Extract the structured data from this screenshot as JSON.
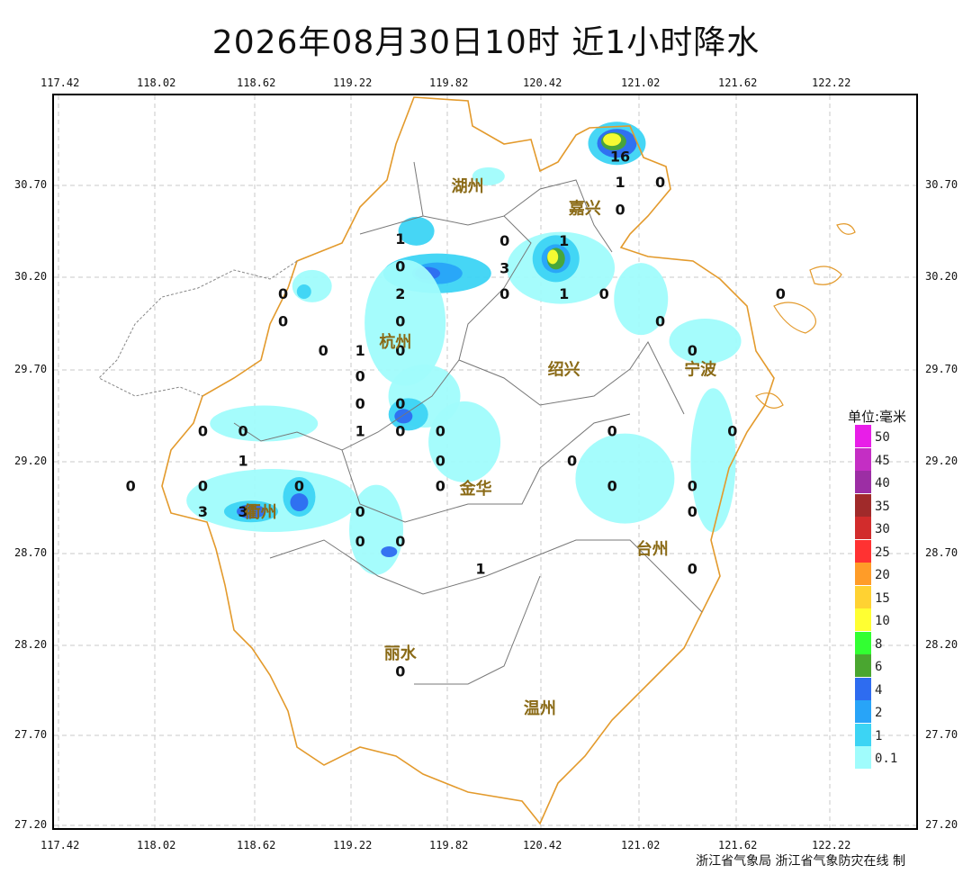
{
  "title": "2026年08月30日10时  近1小时降水",
  "footer": "浙江省气象局 浙江省气象防灾在线 制",
  "x_ticks": [
    "117.42",
    "118.02",
    "118.62",
    "119.22",
    "119.82",
    "120.42",
    "121.02",
    "121.62",
    "122.22"
  ],
  "y_ticks": [
    "30.70",
    "30.20",
    "29.70",
    "29.20",
    "28.70",
    "28.20",
    "27.70",
    "27.20"
  ],
  "legend": {
    "title": "单位:毫米",
    "items": [
      {
        "label": "50",
        "color": "#e81ee8"
      },
      {
        "label": "45",
        "color": "#c42ec4"
      },
      {
        "label": "40",
        "color": "#9c2ea4"
      },
      {
        "label": "35",
        "color": "#a02a2a"
      },
      {
        "label": "30",
        "color": "#d22c2c"
      },
      {
        "label": "25",
        "color": "#ff3232"
      },
      {
        "label": "20",
        "color": "#ff9c28"
      },
      {
        "label": "15",
        "color": "#ffd232"
      },
      {
        "label": "10",
        "color": "#ffff32"
      },
      {
        "label": "8",
        "color": "#32ff32"
      },
      {
        "label": "6",
        "color": "#4aa630"
      },
      {
        "label": "4",
        "color": "#2e6cf0"
      },
      {
        "label": "2",
        "color": "#28a4f8"
      },
      {
        "label": "1",
        "color": "#3cd4f4"
      },
      {
        "label": "0.1",
        "color": "#a0fcfc"
      }
    ]
  },
  "cities": [
    {
      "name": "湖州",
      "lon": 119.97,
      "lat": 30.7
    },
    {
      "name": "嘉兴",
      "lon": 120.7,
      "lat": 30.58
    },
    {
      "name": "杭州",
      "lon": 119.52,
      "lat": 29.85
    },
    {
      "name": "绍兴",
      "lon": 120.57,
      "lat": 29.7
    },
    {
      "name": "宁波",
      "lon": 121.42,
      "lat": 29.7
    },
    {
      "name": "金华",
      "lon": 120.02,
      "lat": 29.05
    },
    {
      "name": "衢州",
      "lon": 118.68,
      "lat": 28.92
    },
    {
      "name": "台州",
      "lon": 121.12,
      "lat": 28.72
    },
    {
      "name": "丽水",
      "lon": 119.55,
      "lat": 28.15
    },
    {
      "name": "温州",
      "lon": 120.42,
      "lat": 27.85
    }
  ],
  "stations": [
    {
      "v": "16",
      "lon": 120.92,
      "lat": 30.86
    },
    {
      "v": "1",
      "lon": 120.92,
      "lat": 30.72
    },
    {
      "v": "0",
      "lon": 121.17,
      "lat": 30.72
    },
    {
      "v": "0",
      "lon": 120.92,
      "lat": 30.57
    },
    {
      "v": "0",
      "lon": 120.2,
      "lat": 30.4
    },
    {
      "v": "1",
      "lon": 120.57,
      "lat": 30.4
    },
    {
      "v": "3",
      "lon": 120.2,
      "lat": 30.25
    },
    {
      "v": "0",
      "lon": 120.2,
      "lat": 30.11
    },
    {
      "v": "1",
      "lon": 120.57,
      "lat": 30.11
    },
    {
      "v": "0",
      "lon": 120.82,
      "lat": 30.11
    },
    {
      "v": "0",
      "lon": 121.17,
      "lat": 29.96
    },
    {
      "v": "0",
      "lon": 121.92,
      "lat": 30.11
    },
    {
      "v": "1",
      "lon": 119.55,
      "lat": 30.41
    },
    {
      "v": "0",
      "lon": 119.55,
      "lat": 30.26
    },
    {
      "v": "2",
      "lon": 119.55,
      "lat": 30.11
    },
    {
      "v": "0",
      "lon": 119.55,
      "lat": 29.96
    },
    {
      "v": "0",
      "lon": 119.55,
      "lat": 29.8
    },
    {
      "v": "0",
      "lon": 118.82,
      "lat": 30.11
    },
    {
      "v": "0",
      "lon": 118.82,
      "lat": 29.96
    },
    {
      "v": "0",
      "lon": 119.07,
      "lat": 29.8
    },
    {
      "v": "1",
      "lon": 119.3,
      "lat": 29.8
    },
    {
      "v": "0",
      "lon": 119.3,
      "lat": 29.66
    },
    {
      "v": "0",
      "lon": 119.3,
      "lat": 29.51
    },
    {
      "v": "1",
      "lon": 119.3,
      "lat": 29.36
    },
    {
      "v": "0",
      "lon": 119.55,
      "lat": 29.51
    },
    {
      "v": "0",
      "lon": 119.55,
      "lat": 29.36
    },
    {
      "v": "0",
      "lon": 119.8,
      "lat": 29.36
    },
    {
      "v": "0",
      "lon": 119.8,
      "lat": 29.2
    },
    {
      "v": "0",
      "lon": 119.8,
      "lat": 29.06
    },
    {
      "v": "0",
      "lon": 120.62,
      "lat": 29.2
    },
    {
      "v": "0",
      "lon": 120.87,
      "lat": 29.36
    },
    {
      "v": "0",
      "lon": 120.87,
      "lat": 29.06
    },
    {
      "v": "0",
      "lon": 121.62,
      "lat": 29.36
    },
    {
      "v": "0",
      "lon": 121.37,
      "lat": 29.8
    },
    {
      "v": "0",
      "lon": 121.37,
      "lat": 29.06
    },
    {
      "v": "0",
      "lon": 121.37,
      "lat": 28.92
    },
    {
      "v": "0",
      "lon": 121.37,
      "lat": 28.61
    },
    {
      "v": "0",
      "lon": 118.32,
      "lat": 29.36
    },
    {
      "v": "0",
      "lon": 118.57,
      "lat": 29.36
    },
    {
      "v": "1",
      "lon": 118.57,
      "lat": 29.2
    },
    {
      "v": "0",
      "lon": 117.87,
      "lat": 29.06
    },
    {
      "v": "0",
      "lon": 118.32,
      "lat": 29.06
    },
    {
      "v": "3",
      "lon": 118.32,
      "lat": 28.92
    },
    {
      "v": "3",
      "lon": 118.57,
      "lat": 28.92
    },
    {
      "v": "0",
      "lon": 118.92,
      "lat": 29.06
    },
    {
      "v": "0",
      "lon": 119.3,
      "lat": 28.92
    },
    {
      "v": "0",
      "lon": 119.3,
      "lat": 28.76
    },
    {
      "v": "0",
      "lon": 119.55,
      "lat": 28.76
    },
    {
      "v": "1",
      "lon": 120.05,
      "lat": 28.61
    },
    {
      "v": "0",
      "lon": 119.55,
      "lat": 28.05
    }
  ],
  "rain_cells": [
    {
      "lon": 119.78,
      "lat": 30.22,
      "rx": 60,
      "ry": 22,
      "level": "1"
    },
    {
      "lon": 119.78,
      "lat": 30.22,
      "rx": 28,
      "ry": 12,
      "level": "2"
    },
    {
      "lon": 119.72,
      "lat": 30.22,
      "rx": 14,
      "ry": 7,
      "level": "4"
    },
    {
      "lon": 119.58,
      "lat": 29.95,
      "rx": 45,
      "ry": 70,
      "level": "0.1"
    },
    {
      "lon": 119.7,
      "lat": 29.55,
      "rx": 40,
      "ry": 35,
      "level": "0.1"
    },
    {
      "lon": 119.6,
      "lat": 29.45,
      "rx": 22,
      "ry": 18,
      "level": "1"
    },
    {
      "lon": 119.57,
      "lat": 29.44,
      "rx": 10,
      "ry": 8,
      "level": "4"
    },
    {
      "lon": 119.95,
      "lat": 29.3,
      "rx": 40,
      "ry": 45,
      "level": "0.1"
    },
    {
      "lon": 120.55,
      "lat": 30.25,
      "rx": 60,
      "ry": 40,
      "level": "0.1"
    },
    {
      "lon": 120.52,
      "lat": 30.3,
      "rx": 26,
      "ry": 26,
      "level": "1"
    },
    {
      "lon": 120.52,
      "lat": 30.3,
      "rx": 16,
      "ry": 16,
      "level": "2"
    },
    {
      "lon": 120.52,
      "lat": 30.3,
      "rx": 10,
      "ry": 12,
      "level": "6"
    },
    {
      "lon": 120.5,
      "lat": 30.31,
      "rx": 6,
      "ry": 8,
      "level": "10"
    },
    {
      "lon": 120.9,
      "lat": 30.93,
      "rx": 32,
      "ry": 24,
      "level": "1"
    },
    {
      "lon": 120.9,
      "lat": 30.93,
      "rx": 22,
      "ry": 16,
      "level": "4"
    },
    {
      "lon": 120.88,
      "lat": 30.94,
      "rx": 14,
      "ry": 10,
      "level": "6"
    },
    {
      "lon": 120.87,
      "lat": 30.95,
      "rx": 10,
      "ry": 7,
      "level": "10"
    },
    {
      "lon": 118.75,
      "lat": 28.98,
      "rx": 95,
      "ry": 35,
      "level": "0.1"
    },
    {
      "lon": 118.62,
      "lat": 28.92,
      "rx": 30,
      "ry": 12,
      "level": "1"
    },
    {
      "lon": 118.62,
      "lat": 28.92,
      "rx": 16,
      "ry": 8,
      "level": "4"
    },
    {
      "lon": 118.92,
      "lat": 29.0,
      "rx": 18,
      "ry": 22,
      "level": "1"
    },
    {
      "lon": 118.92,
      "lat": 28.97,
      "rx": 10,
      "ry": 10,
      "level": "4"
    },
    {
      "lon": 118.7,
      "lat": 29.4,
      "rx": 60,
      "ry": 20,
      "level": "0.1"
    },
    {
      "lon": 119.4,
      "lat": 28.82,
      "rx": 30,
      "ry": 50,
      "level": "0.1"
    },
    {
      "lon": 119.48,
      "lat": 28.7,
      "rx": 9,
      "ry": 6,
      "level": "4"
    },
    {
      "lon": 120.95,
      "lat": 29.1,
      "rx": 55,
      "ry": 50,
      "level": "0.1"
    },
    {
      "lon": 121.45,
      "lat": 29.85,
      "rx": 40,
      "ry": 25,
      "level": "0.1"
    },
    {
      "lon": 121.5,
      "lat": 29.2,
      "rx": 25,
      "ry": 80,
      "level": "0.1"
    },
    {
      "lon": 119.0,
      "lat": 30.15,
      "rx": 22,
      "ry": 18,
      "level": "0.1"
    },
    {
      "lon": 118.95,
      "lat": 30.12,
      "rx": 8,
      "ry": 8,
      "level": "1"
    },
    {
      "lon": 121.05,
      "lat": 30.08,
      "rx": 30,
      "ry": 40,
      "level": "0.1"
    },
    {
      "lon": 120.1,
      "lat": 30.75,
      "rx": 18,
      "ry": 10,
      "level": "0.1"
    },
    {
      "lon": 119.65,
      "lat": 30.45,
      "rx": 20,
      "ry": 16,
      "level": "1"
    }
  ]
}
